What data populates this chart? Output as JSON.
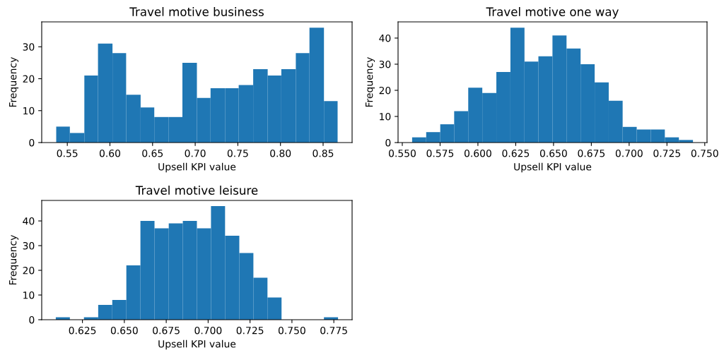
{
  "chart_data": [
    {
      "type": "histogram",
      "title": "Travel motive business",
      "xlabel": "Upsell KPI value",
      "ylabel": "Frequency",
      "color": "#1f77b4",
      "bins": [
        0.537,
        0.553,
        0.57,
        0.586,
        0.603,
        0.619,
        0.636,
        0.652,
        0.669,
        0.685,
        0.702,
        0.718,
        0.735,
        0.751,
        0.768,
        0.785,
        0.801,
        0.818,
        0.834,
        0.851,
        0.867
      ],
      "values": [
        5,
        3,
        21,
        31,
        28,
        15,
        11,
        8,
        8,
        25,
        14,
        17,
        17,
        18,
        23,
        21,
        23,
        28,
        36,
        13
      ],
      "xlim": [
        0.52,
        0.884
      ],
      "ylim": [
        0,
        37.8
      ],
      "xticks": [
        {
          "value": 0.55,
          "label": "0.55"
        },
        {
          "value": 0.6,
          "label": "0.60"
        },
        {
          "value": 0.65,
          "label": "0.65"
        },
        {
          "value": 0.7,
          "label": "0.70"
        },
        {
          "value": 0.75,
          "label": "0.75"
        },
        {
          "value": 0.8,
          "label": "0.80"
        },
        {
          "value": 0.85,
          "label": "0.85"
        }
      ],
      "yticks": [
        0,
        10,
        20,
        30
      ],
      "grid": false
    },
    {
      "type": "histogram",
      "title": "Travel motive one way",
      "xlabel": "Upsell KPI value",
      "ylabel": "Frequency",
      "color": "#1f77b4",
      "bins": [
        0.5565,
        0.5658,
        0.5751,
        0.5843,
        0.5936,
        0.6029,
        0.6122,
        0.6215,
        0.6308,
        0.64,
        0.6493,
        0.6586,
        0.6679,
        0.6772,
        0.6865,
        0.6957,
        0.705,
        0.7143,
        0.7236,
        0.7329,
        0.7422
      ],
      "values": [
        2,
        4,
        7,
        12,
        21,
        19,
        27,
        44,
        31,
        33,
        41,
        36,
        30,
        23,
        16,
        6,
        5,
        5,
        2,
        1
      ],
      "xlim": [
        0.5472,
        0.7515
      ],
      "ylim": [
        0,
        46.2
      ],
      "xticks": [
        {
          "value": 0.55,
          "label": "0.550"
        },
        {
          "value": 0.575,
          "label": "0.575"
        },
        {
          "value": 0.6,
          "label": "0.600"
        },
        {
          "value": 0.625,
          "label": "0.625"
        },
        {
          "value": 0.65,
          "label": "0.650"
        },
        {
          "value": 0.675,
          "label": "0.675"
        },
        {
          "value": 0.7,
          "label": "0.700"
        },
        {
          "value": 0.725,
          "label": "0.725"
        },
        {
          "value": 0.75,
          "label": "0.750"
        }
      ],
      "yticks": [
        0,
        10,
        20,
        30,
        40
      ],
      "grid": false
    },
    {
      "type": "histogram",
      "title": "Travel motive leisure",
      "xlabel": "Upsell KPI value",
      "ylabel": "Frequency",
      "color": "#1f77b4",
      "bins": [
        0.6091,
        0.6175,
        0.6259,
        0.6344,
        0.6428,
        0.6512,
        0.6596,
        0.668,
        0.6765,
        0.6849,
        0.6933,
        0.7017,
        0.7101,
        0.7186,
        0.727,
        0.7354,
        0.7438,
        0.7522,
        0.7607,
        0.7691,
        0.7775
      ],
      "values": [
        1,
        0,
        1,
        6,
        8,
        22,
        40,
        37,
        39,
        40,
        37,
        46,
        34,
        27,
        17,
        9,
        0,
        0,
        0,
        1
      ],
      "xlim": [
        0.6007,
        0.7859
      ],
      "ylim": [
        0,
        48.3
      ],
      "xticks": [
        {
          "value": 0.625,
          "label": "0.625"
        },
        {
          "value": 0.65,
          "label": "0.650"
        },
        {
          "value": 0.675,
          "label": "0.675"
        },
        {
          "value": 0.7,
          "label": "0.700"
        },
        {
          "value": 0.725,
          "label": "0.725"
        },
        {
          "value": 0.75,
          "label": "0.750"
        },
        {
          "value": 0.775,
          "label": "0.775"
        }
      ],
      "yticks": [
        0,
        10,
        20,
        30,
        40
      ],
      "grid": false
    }
  ]
}
